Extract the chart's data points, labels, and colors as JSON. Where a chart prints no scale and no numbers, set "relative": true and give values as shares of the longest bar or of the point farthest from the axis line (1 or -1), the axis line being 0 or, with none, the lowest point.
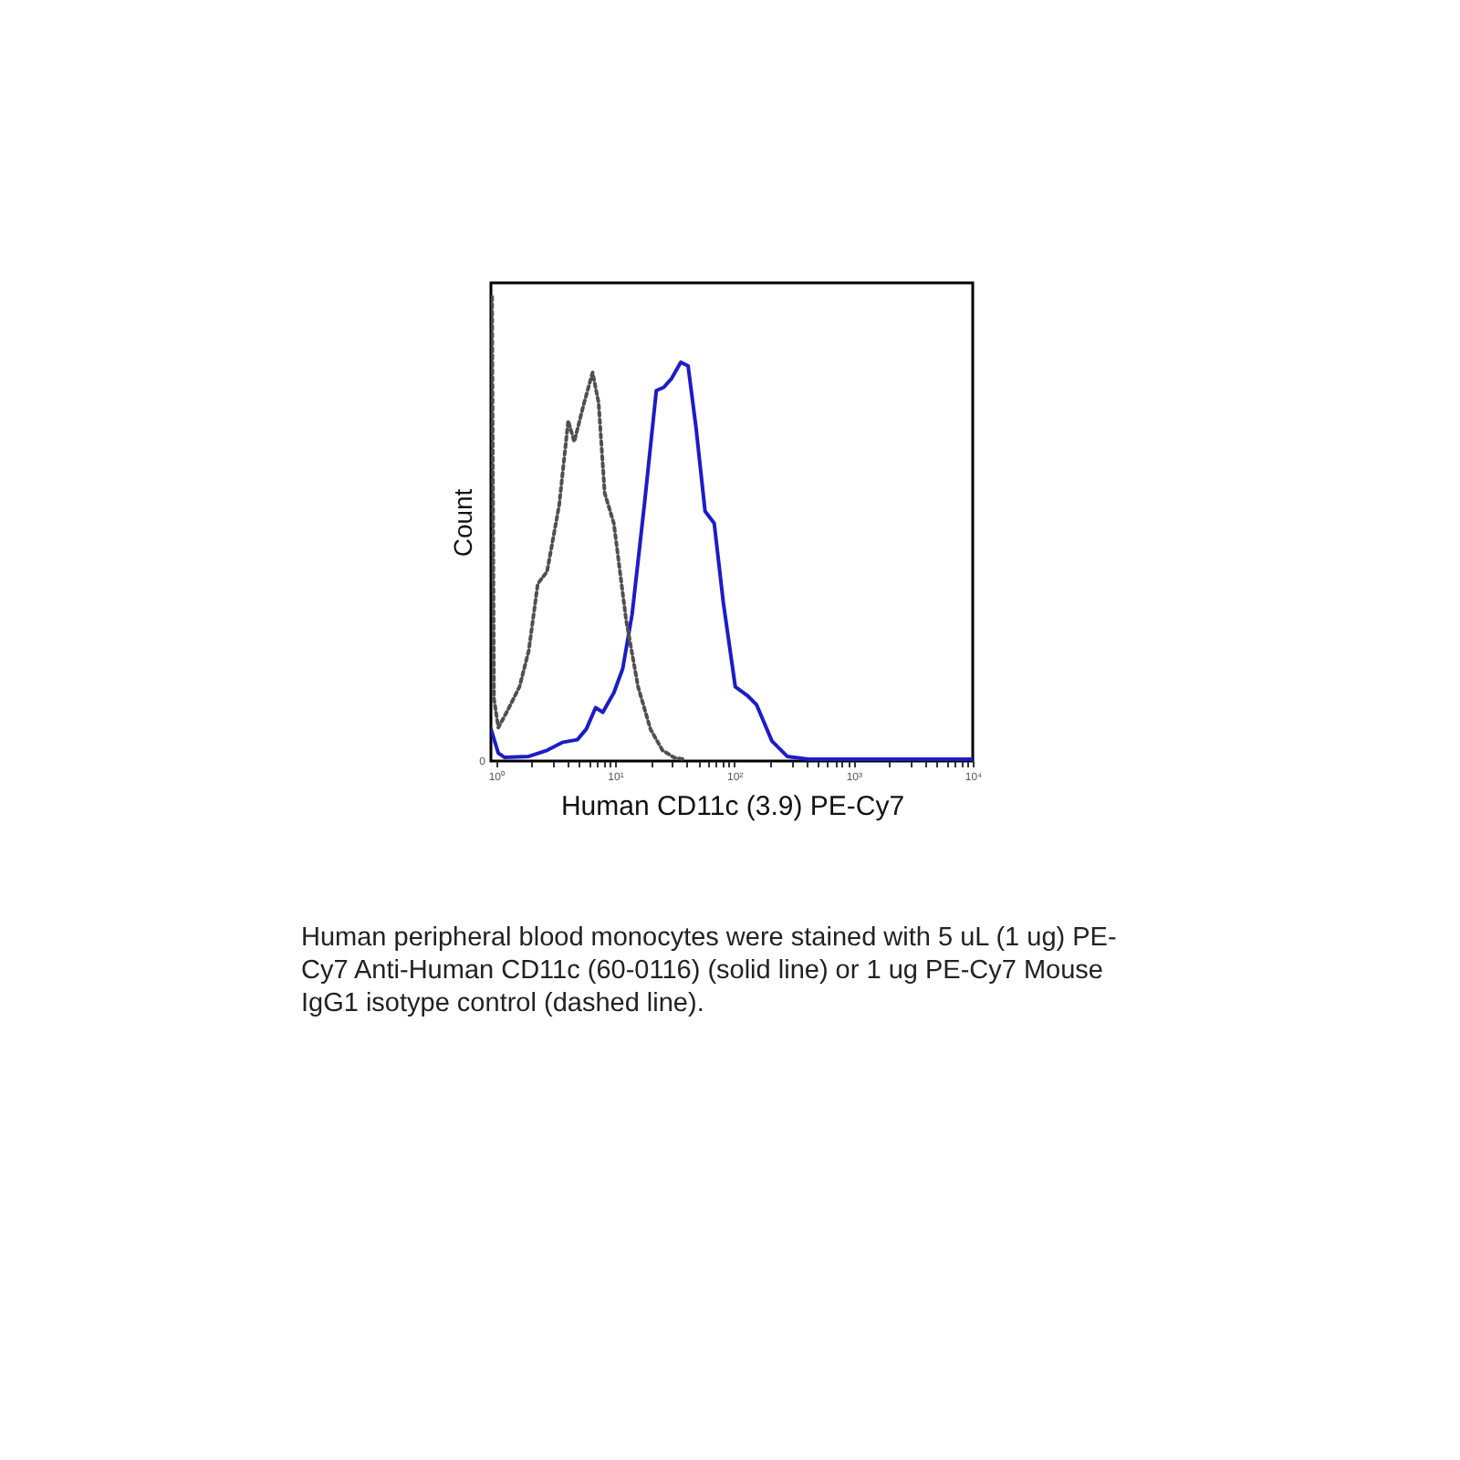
{
  "chart_data": {
    "type": "line",
    "relative": true,
    "log": "x",
    "xlabel": "Human CD11c (3.9) PE-Cy7",
    "ylabel": "Count",
    "xlim": [
      0.91,
      10000
    ],
    "xticks": [
      {
        "value": 1,
        "label": "10⁰"
      },
      {
        "value": 2,
        "label": null
      },
      {
        "value": 3,
        "label": null
      },
      {
        "value": 4,
        "label": null
      },
      {
        "value": 5,
        "label": null
      },
      {
        "value": 6,
        "label": null
      },
      {
        "value": 7,
        "label": null
      },
      {
        "value": 8,
        "label": null
      },
      {
        "value": 9,
        "label": null
      },
      {
        "value": 10,
        "label": "10¹"
      },
      {
        "value": 20,
        "label": null
      },
      {
        "value": 30,
        "label": null
      },
      {
        "value": 40,
        "label": null
      },
      {
        "value": 50,
        "label": null
      },
      {
        "value": 60,
        "label": null
      },
      {
        "value": 70,
        "label": null
      },
      {
        "value": 80,
        "label": null
      },
      {
        "value": 90,
        "label": null
      },
      {
        "value": 100,
        "label": "10²"
      },
      {
        "value": 200,
        "label": null
      },
      {
        "value": 300,
        "label": null
      },
      {
        "value": 400,
        "label": null
      },
      {
        "value": 500,
        "label": null
      },
      {
        "value": 600,
        "label": null
      },
      {
        "value": 700,
        "label": null
      },
      {
        "value": 800,
        "label": null
      },
      {
        "value": 900,
        "label": null
      },
      {
        "value": 1000,
        "label": "10³"
      },
      {
        "value": 2000,
        "label": null
      },
      {
        "value": 3000,
        "label": null
      },
      {
        "value": 4000,
        "label": null
      },
      {
        "value": 5000,
        "label": null
      },
      {
        "value": 6000,
        "label": null
      },
      {
        "value": 7000,
        "label": null
      },
      {
        "value": 8000,
        "label": null
      },
      {
        "value": 9000,
        "label": null
      },
      {
        "value": 10000,
        "label": "10⁴"
      }
    ],
    "series": [
      {
        "color": "#1c1cc8",
        "line_style": "solid",
        "x": [
          0.91,
          1.05,
          1.18,
          1.89,
          2.69,
          3.6,
          4.83,
          5.75,
          6.87,
          7.9,
          9.77,
          11.6,
          13.9,
          17.6,
          22.2,
          25.6,
          29.8,
          35.6,
          41,
          47.7,
          56.9,
          67.9,
          80.9,
          102,
          129,
          154,
          207,
          278,
          419,
          10000
        ],
        "values": [
          0.069,
          0.017,
          0.008,
          0.01,
          0.023,
          0.04,
          0.046,
          0.069,
          0.115,
          0.105,
          0.147,
          0.199,
          0.316,
          0.551,
          0.798,
          0.805,
          0.824,
          0.859,
          0.851,
          0.72,
          0.538,
          0.512,
          0.342,
          0.16,
          0.141,
          0.121,
          0.043,
          0.01,
          0.004,
          0.004
        ]
      },
      {
        "color": "#505050",
        "line_style": "dotted",
        "x": [
          0.93,
          0.965,
          1.05,
          1.25,
          1.58,
          1.89,
          2.25,
          2.69,
          3.4,
          4.05,
          4.55,
          5.43,
          6.48,
          7.28,
          8.19,
          9.77,
          12.4,
          15.6,
          19.8,
          25,
          31.6,
          38
        ],
        "values": [
          1.0,
          0.134,
          0.072,
          0.108,
          0.16,
          0.238,
          0.382,
          0.408,
          0.551,
          0.733,
          0.688,
          0.766,
          0.837,
          0.772,
          0.577,
          0.512,
          0.303,
          0.16,
          0.069,
          0.023,
          0.007,
          0.004
        ]
      }
    ],
    "annotations": [
      "0",
      "Human peripheral blood monocytes were stained with 5 uL (1 ug) PE-Cy7 Anti-Human CD11c (60-0116) (solid line) or 1 ug PE-Cy7 Mouse IgG1 isotype control (dashed line)."
    ]
  }
}
